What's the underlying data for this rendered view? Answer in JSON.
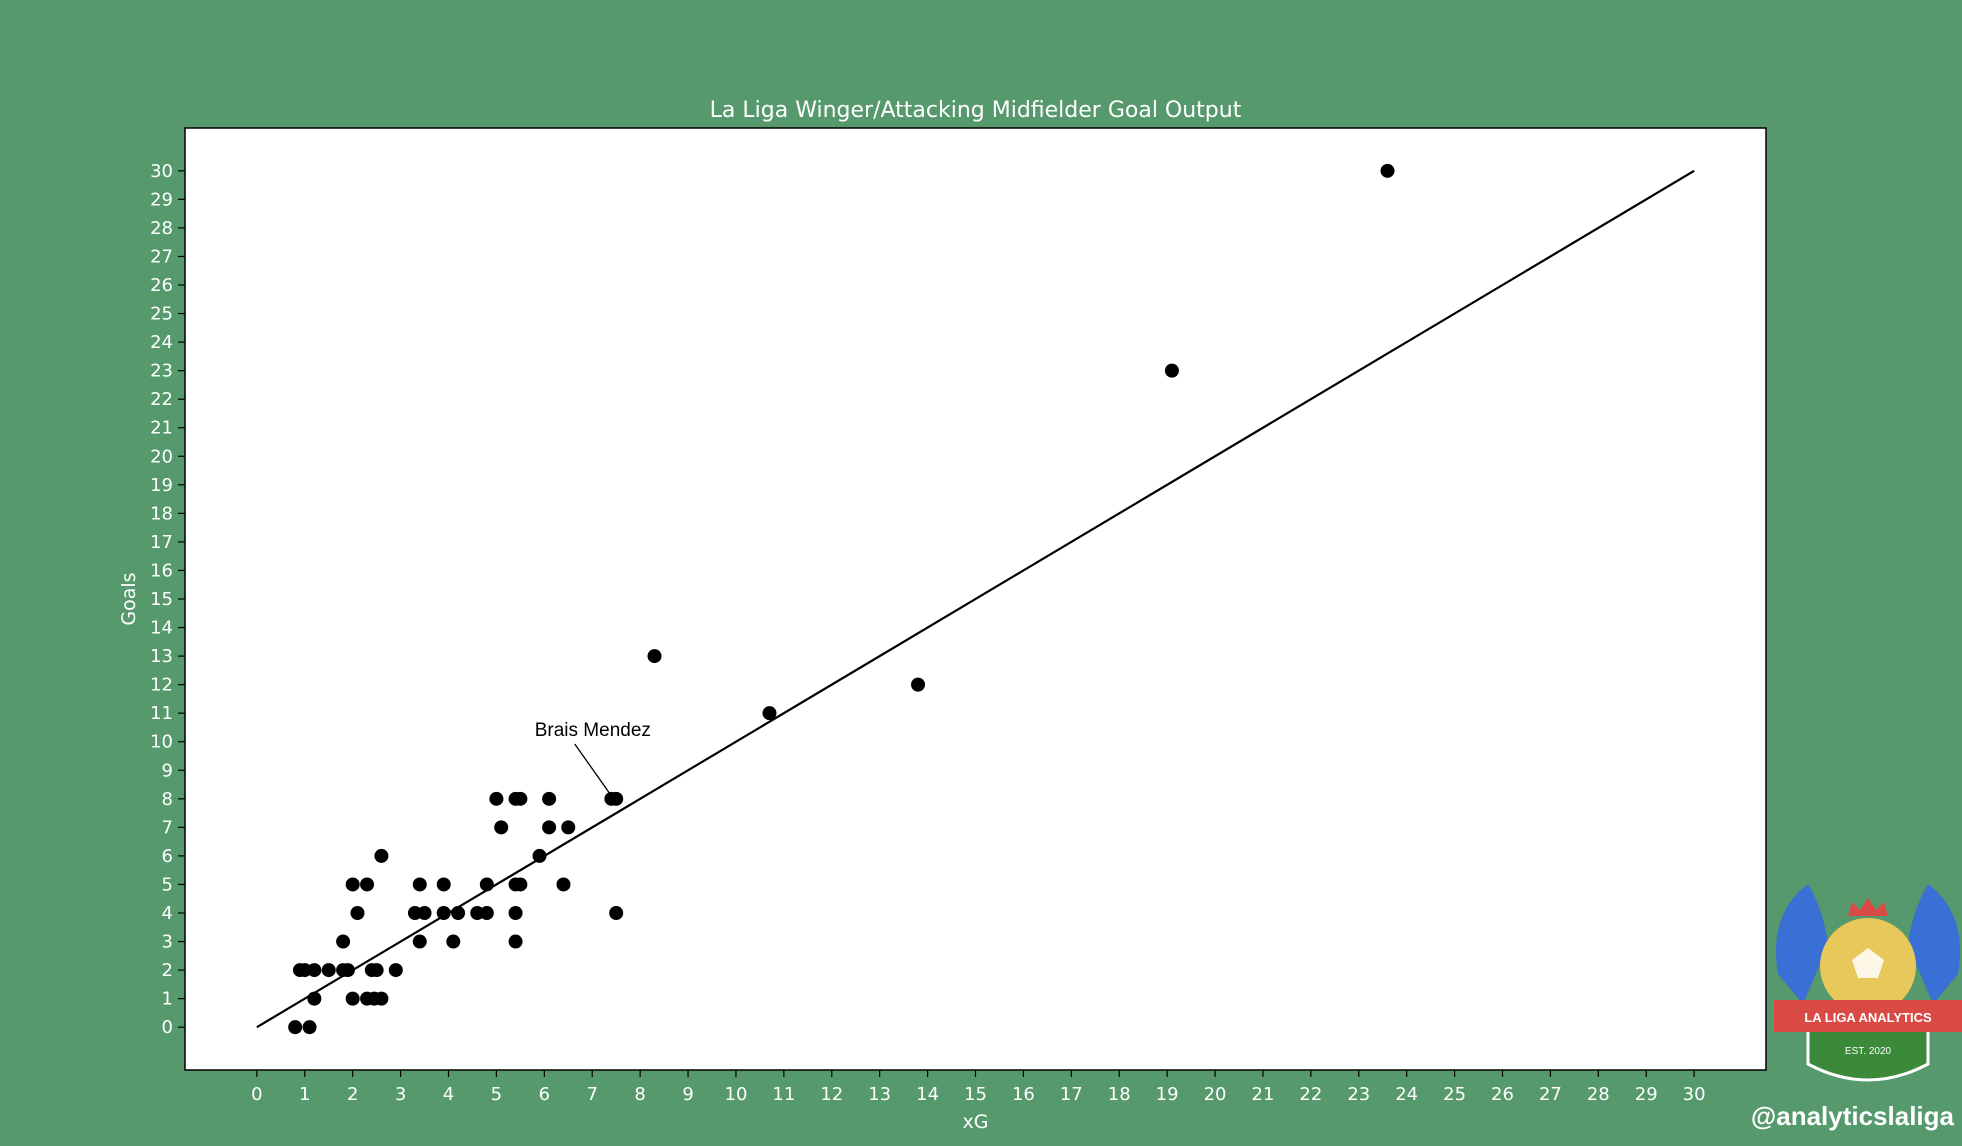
{
  "chart_data": {
    "type": "scatter",
    "title": "La Liga Winger/Attacking Midfielder Goal Output",
    "xlabel": "xG",
    "ylabel": "Goals",
    "xlim": [
      -1.5,
      31.5
    ],
    "ylim": [
      -1.5,
      31.5
    ],
    "xticks": [
      0,
      1,
      2,
      3,
      4,
      5,
      6,
      7,
      8,
      9,
      10,
      11,
      12,
      13,
      14,
      15,
      16,
      17,
      18,
      19,
      20,
      21,
      22,
      23,
      24,
      25,
      26,
      27,
      28,
      29,
      30
    ],
    "yticks": [
      0,
      1,
      2,
      3,
      4,
      5,
      6,
      7,
      8,
      9,
      10,
      11,
      12,
      13,
      14,
      15,
      16,
      17,
      18,
      19,
      20,
      21,
      22,
      23,
      24,
      25,
      26,
      27,
      28,
      29,
      30
    ],
    "grid": false,
    "reference_line": {
      "x": [
        0,
        30
      ],
      "y": [
        0,
        30
      ],
      "color": "#000000"
    },
    "point_color": "#000000",
    "points": [
      {
        "x": 0.8,
        "y": 0
      },
      {
        "x": 1.1,
        "y": 0
      },
      {
        "x": 1.2,
        "y": 1
      },
      {
        "x": 2.0,
        "y": 1
      },
      {
        "x": 2.3,
        "y": 1
      },
      {
        "x": 2.45,
        "y": 1
      },
      {
        "x": 2.6,
        "y": 1
      },
      {
        "x": 0.9,
        "y": 2
      },
      {
        "x": 1.0,
        "y": 2
      },
      {
        "x": 1.2,
        "y": 2
      },
      {
        "x": 1.5,
        "y": 2
      },
      {
        "x": 1.8,
        "y": 2
      },
      {
        "x": 1.9,
        "y": 2
      },
      {
        "x": 2.4,
        "y": 2
      },
      {
        "x": 2.5,
        "y": 2
      },
      {
        "x": 2.9,
        "y": 2
      },
      {
        "x": 1.8,
        "y": 3
      },
      {
        "x": 3.4,
        "y": 3
      },
      {
        "x": 4.1,
        "y": 3
      },
      {
        "x": 5.4,
        "y": 3
      },
      {
        "x": 2.1,
        "y": 4
      },
      {
        "x": 3.3,
        "y": 4
      },
      {
        "x": 3.5,
        "y": 4
      },
      {
        "x": 3.9,
        "y": 4
      },
      {
        "x": 4.2,
        "y": 4
      },
      {
        "x": 4.6,
        "y": 4
      },
      {
        "x": 4.8,
        "y": 4
      },
      {
        "x": 5.4,
        "y": 4
      },
      {
        "x": 7.5,
        "y": 4
      },
      {
        "x": 2.0,
        "y": 5
      },
      {
        "x": 2.3,
        "y": 5
      },
      {
        "x": 3.4,
        "y": 5
      },
      {
        "x": 3.9,
        "y": 5
      },
      {
        "x": 4.8,
        "y": 5
      },
      {
        "x": 5.4,
        "y": 5
      },
      {
        "x": 5.5,
        "y": 5
      },
      {
        "x": 6.4,
        "y": 5
      },
      {
        "x": 2.6,
        "y": 6
      },
      {
        "x": 5.9,
        "y": 6
      },
      {
        "x": 5.1,
        "y": 7
      },
      {
        "x": 6.1,
        "y": 7
      },
      {
        "x": 6.5,
        "y": 7
      },
      {
        "x": 5.0,
        "y": 8
      },
      {
        "x": 5.4,
        "y": 8
      },
      {
        "x": 5.5,
        "y": 8
      },
      {
        "x": 6.1,
        "y": 8
      },
      {
        "x": 7.4,
        "y": 8
      },
      {
        "x": 7.5,
        "y": 8
      },
      {
        "x": 10.7,
        "y": 11
      },
      {
        "x": 13.8,
        "y": 12
      },
      {
        "x": 8.3,
        "y": 13
      },
      {
        "x": 19.1,
        "y": 23
      },
      {
        "x": 23.6,
        "y": 30
      }
    ],
    "annotations": [
      {
        "text": "Brais Mendez",
        "x": 7.4,
        "y": 8,
        "text_x": 5.8,
        "text_y": 10.2
      }
    ]
  },
  "footer": {
    "handle": "@analyticslaliga"
  },
  "logo": {
    "banner_text": "LA LIGA ANALYTICS",
    "est_text": "EST. 2020",
    "colors": {
      "wings": "#3a6fd6",
      "ball": "#e8c85a",
      "banner": "#d94a45",
      "shield": "#3a8a3a",
      "crown": "#d94a45"
    }
  }
}
